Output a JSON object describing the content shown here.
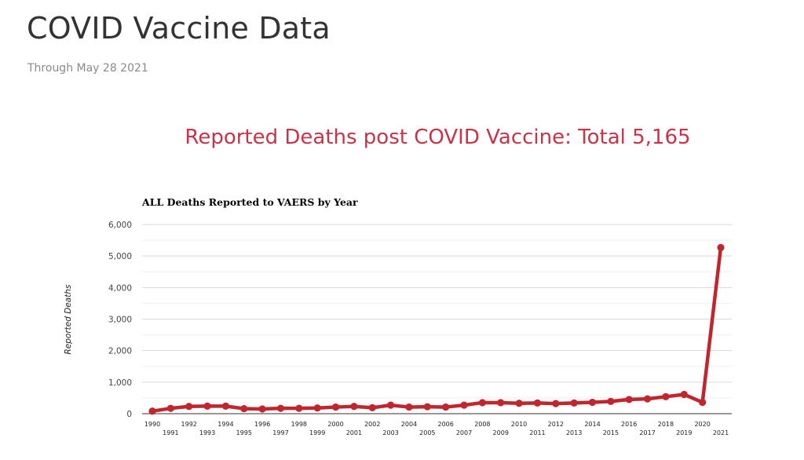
{
  "page": {
    "title": "COVID Vaccine Data",
    "subtitle": "Through May 28 2021",
    "heading": "Reported Deaths post COVID Vaccine: Total 5,165"
  },
  "chart_data": {
    "type": "line",
    "title": "ALL Deaths Reported to VAERS by Year",
    "xlabel": "",
    "ylabel": "Reported Deaths",
    "ylim": [
      0,
      6000
    ],
    "yticks": [
      0,
      1000,
      2000,
      3000,
      4000,
      5000,
      6000
    ],
    "ytick_labels": [
      "0",
      "1,000",
      "2,000",
      "3,000",
      "4,000",
      "5,000",
      "6,000"
    ],
    "grid": true,
    "line_color": "#c0262d",
    "categories": [
      "1990",
      "1991",
      "1992",
      "1993",
      "1994",
      "1995",
      "1996",
      "1997",
      "1998",
      "1999",
      "2000",
      "2001",
      "2002",
      "2003",
      "2004",
      "2005",
      "2006",
      "2007",
      "2008",
      "2009",
      "2010",
      "2011",
      "2012",
      "2013",
      "2014",
      "2015",
      "2016",
      "2017",
      "2018",
      "2019",
      "2020",
      "2021"
    ],
    "series": [
      {
        "values": [
          80,
          170,
          230,
          240,
          240,
          160,
          150,
          170,
          170,
          180,
          210,
          230,
          190,
          270,
          210,
          220,
          210,
          270,
          350,
          350,
          330,
          340,
          320,
          340,
          360,
          390,
          450,
          470,
          540,
          610,
          360,
          5270
        ]
      }
    ]
  }
}
